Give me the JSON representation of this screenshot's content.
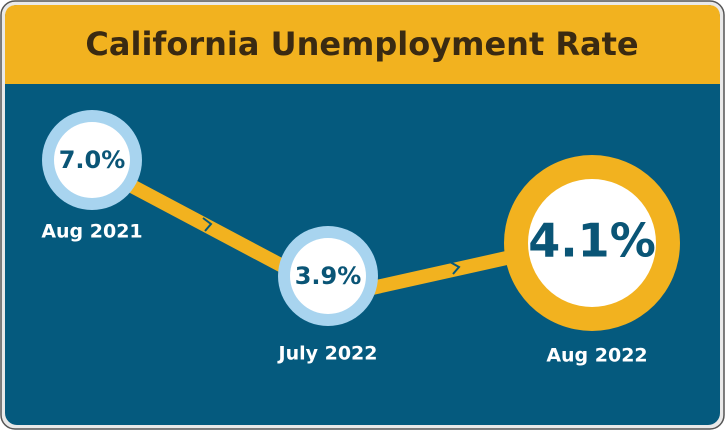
{
  "title": "California Unemployment Rate",
  "points": [
    {
      "value": "7.0%",
      "date": "Aug 2021"
    },
    {
      "value": "3.9%",
      "date": "July 2022"
    },
    {
      "value": "4.1%",
      "date": "Aug 2022"
    }
  ]
}
